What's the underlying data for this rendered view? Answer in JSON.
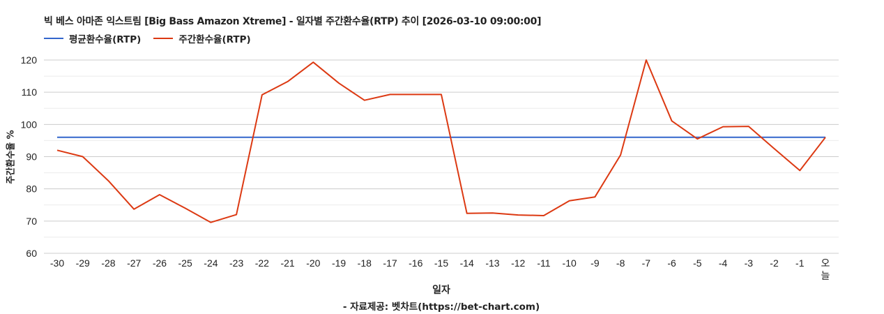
{
  "header": {
    "title": "빅 베스 아마존 익스트림 [Big Bass Amazon Xtreme] - 일자별 주간환수율(RTP) 추이 [2026-03-10 09:00:00]"
  },
  "legend": [
    {
      "label": "평균환수율(RTP)",
      "color": "#3366cc"
    },
    {
      "label": "주간환수율(RTP)",
      "color": "#dc3912"
    }
  ],
  "axes": {
    "ylabel": "주간환수율 %",
    "xlabel": "일자"
  },
  "footer": {
    "source": "- 자료제공: 벳차트(https://bet-chart.com)"
  },
  "chart_data": {
    "type": "line",
    "title": "빅 베스 아마존 익스트림 [Big Bass Amazon Xtreme] - 일자별 주간환수율(RTP) 추이 [2026-03-10 09:00:00]",
    "xlabel": "일자",
    "ylabel": "주간환수율 %",
    "ylim": [
      60,
      120
    ],
    "yticks": [
      60,
      70,
      80,
      90,
      100,
      110,
      120
    ],
    "grid": true,
    "legend_position": "top-left",
    "categories": [
      "-30",
      "-29",
      "-28",
      "-27",
      "-26",
      "-25",
      "-24",
      "-23",
      "-22",
      "-21",
      "-20",
      "-19",
      "-18",
      "-17",
      "-16",
      "-15",
      "-14",
      "-13",
      "-12",
      "-11",
      "-10",
      "-9",
      "-8",
      "-7",
      "-6",
      "-5",
      "-4",
      "-3",
      "-2",
      "-1",
      "오늘"
    ],
    "series": [
      {
        "name": "평균환수율(RTP)",
        "color": "#3366cc",
        "values": [
          96,
          96,
          96,
          96,
          96,
          96,
          96,
          96,
          96,
          96,
          96,
          96,
          96,
          96,
          96,
          96,
          96,
          96,
          96,
          96,
          96,
          96,
          96,
          96,
          96,
          96,
          96,
          96,
          96,
          96,
          96
        ]
      },
      {
        "name": "주간환수율(RTP)",
        "color": "#dc3912",
        "values": [
          92.0,
          90.0,
          82.5,
          73.7,
          78.2,
          74.0,
          69.6,
          72.0,
          109.2,
          113.3,
          119.3,
          112.8,
          107.5,
          109.3,
          109.3,
          109.3,
          72.4,
          72.5,
          71.9,
          71.7,
          76.3,
          77.5,
          90.5,
          120.0,
          101.1,
          95.5,
          99.3,
          99.4,
          92.5,
          85.7,
          96.0
        ]
      }
    ]
  }
}
